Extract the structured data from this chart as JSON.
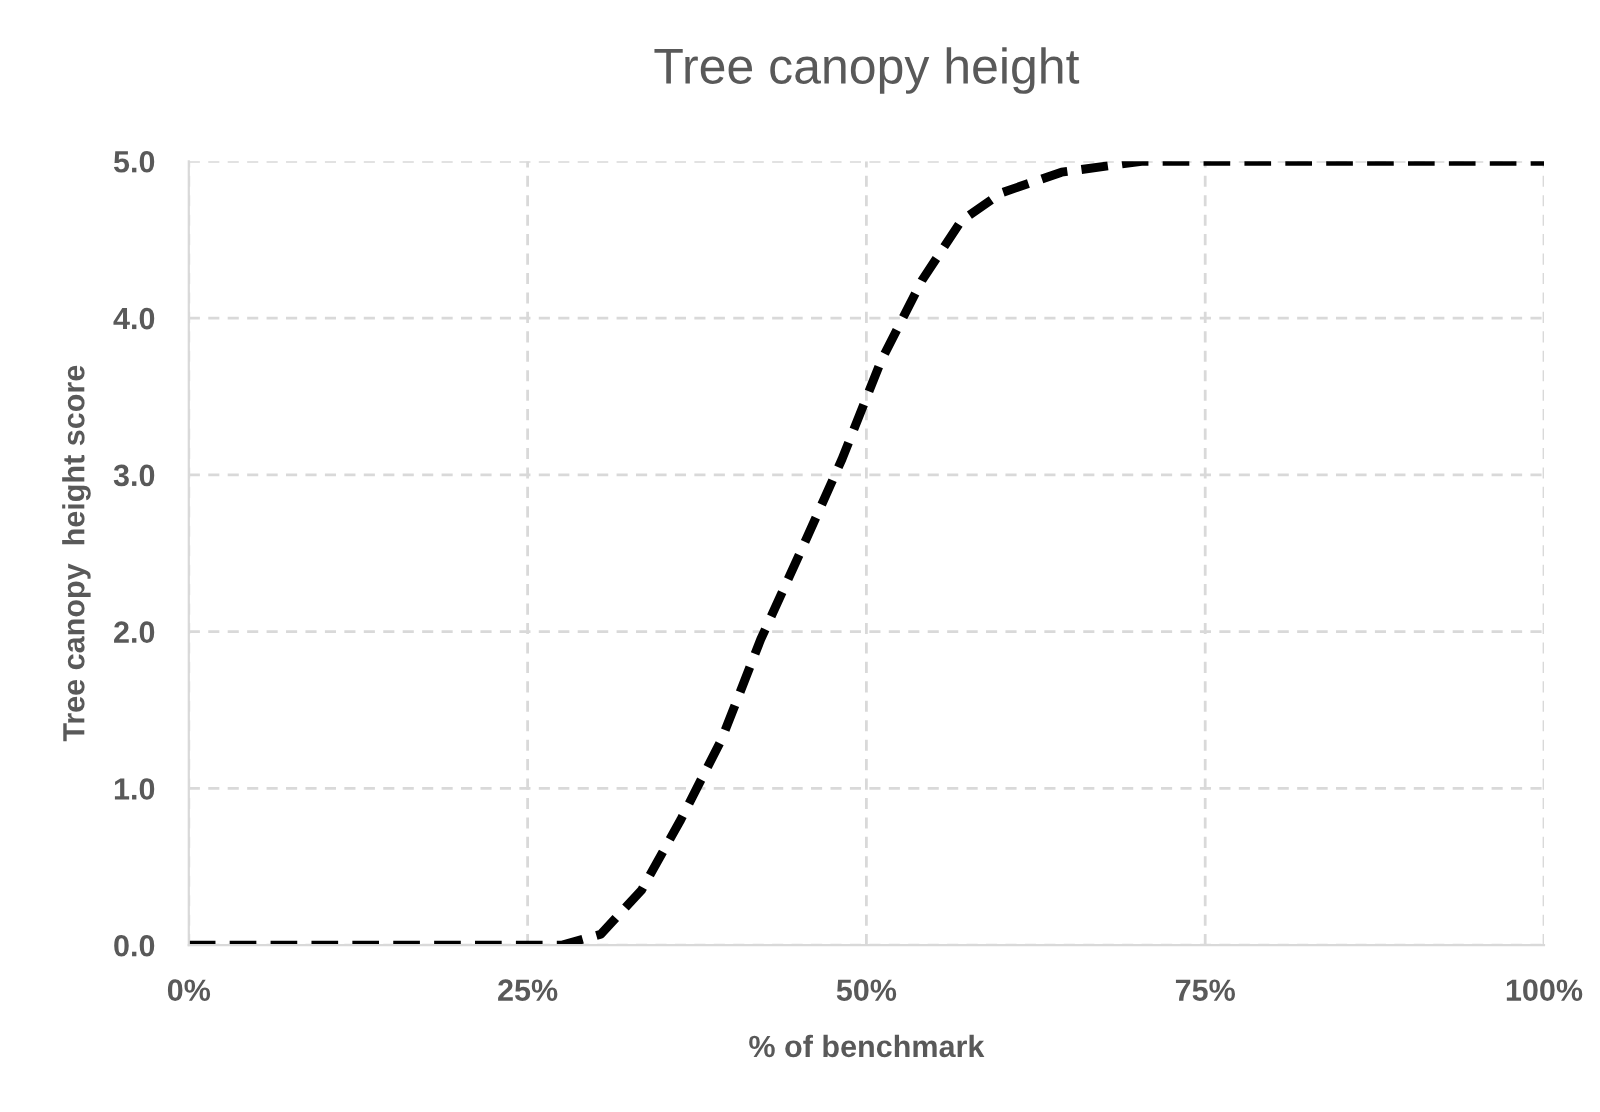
{
  "chart_data": {
    "type": "line",
    "title": "Tree canopy height",
    "xlabel": "% of benchmark",
    "ylabel": "Tree canopy  height score",
    "series": [
      {
        "color": "#000000",
        "line_style": "dashed",
        "x": [
          0,
          10,
          20,
          27.5,
          30.4,
          33.4,
          36.3,
          39.3,
          42.2,
          45.2,
          48.2,
          51.1,
          54.1,
          57.0,
          60.0,
          64.4,
          70.3,
          80,
          90,
          100
        ],
        "values": [
          0,
          0,
          0,
          0,
          0.07,
          0.35,
          0.8,
          1.31,
          1.95,
          2.52,
          3.1,
          3.73,
          4.24,
          4.62,
          4.8,
          4.93,
          5.0,
          5.0,
          5.0,
          5.0
        ]
      }
    ],
    "xlim": [
      0,
      100
    ],
    "xticks": [
      {
        "value": 0,
        "label": "0%"
      },
      {
        "value": 25,
        "label": "25%"
      },
      {
        "value": 50,
        "label": "50%"
      },
      {
        "value": 75,
        "label": "75%"
      },
      {
        "value": 100,
        "label": "100%"
      }
    ],
    "ylim": [
      0,
      5
    ],
    "yticks": [
      {
        "value": 0,
        "label": "0.0"
      },
      {
        "value": 1,
        "label": "1.0"
      },
      {
        "value": 2,
        "label": "2.0"
      },
      {
        "value": 3,
        "label": "3.0"
      },
      {
        "value": 4,
        "label": "4.0"
      },
      {
        "value": 5,
        "label": "5.0"
      }
    ],
    "grid": true,
    "legend": false,
    "marker": "none"
  }
}
